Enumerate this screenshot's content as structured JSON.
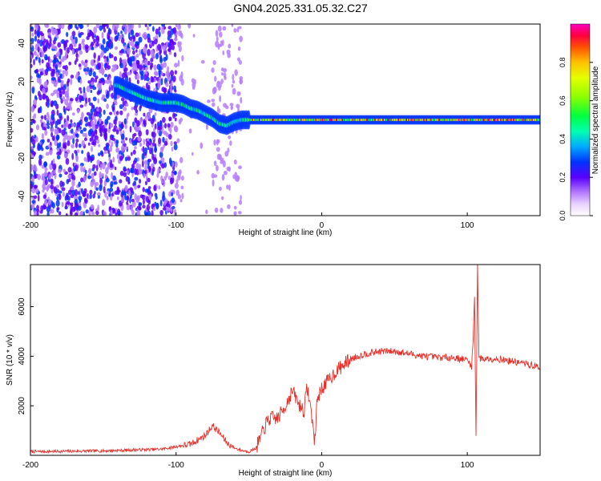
{
  "title": "GN04.2025.331.05.32.C27",
  "chart_data": [
    {
      "type": "heatmap",
      "xlabel": "Height of straight line (km)",
      "ylabel": "Frequency (Hz)",
      "xlim": [
        -200,
        150
      ],
      "ylim": [
        -50,
        50
      ],
      "xticks": [
        -200,
        -100,
        0,
        100
      ],
      "yticks": [
        -40,
        -20,
        0,
        20,
        40
      ],
      "ridge_track": [
        {
          "x": -140,
          "y": 18
        },
        {
          "x": -135,
          "y": 16
        },
        {
          "x": -120,
          "y": 11
        },
        {
          "x": -110,
          "y": 9
        },
        {
          "x": -100,
          "y": 9
        },
        {
          "x": -95,
          "y": 8
        },
        {
          "x": -90,
          "y": 6
        },
        {
          "x": -85,
          "y": 5
        },
        {
          "x": -80,
          "y": 3
        },
        {
          "x": -75,
          "y": 1
        },
        {
          "x": -70,
          "y": -2
        },
        {
          "x": -65,
          "y": -3
        },
        {
          "x": -60,
          "y": -1
        },
        {
          "x": -55,
          "y": 0
        },
        {
          "x": -50,
          "y": 0
        },
        {
          "x": 150,
          "y": 0
        }
      ],
      "colorbar": {
        "label": "Normalized spectral amplitude",
        "range": [
          0,
          1
        ],
        "ticks": [
          "0.0",
          "0.2",
          "0.4",
          "0.6",
          "0.8"
        ],
        "colormap": "rainbow"
      }
    },
    {
      "type": "line",
      "xlabel": "Height of straight line (km)",
      "ylabel": "SNR (10 * v/v)",
      "xlim": [
        -200,
        150
      ],
      "ylim": [
        0,
        7700
      ],
      "xticks": [
        -200,
        -100,
        0,
        100
      ],
      "yticks": [
        2000,
        4000,
        6000
      ],
      "color": "#e8302a",
      "series": [
        {
          "x": [
            -200,
            -150,
            -110,
            -90,
            -80,
            -75,
            -70,
            -65,
            -60,
            -55,
            -50,
            -45,
            -40,
            -38,
            -35,
            -30,
            -25,
            -20,
            -15,
            -12,
            -10,
            -6,
            -5,
            -3,
            0,
            10,
            20,
            30,
            40,
            50,
            60,
            70,
            80,
            90,
            95,
            100,
            103,
            104,
            105,
            106,
            107,
            108,
            109,
            110,
            120,
            130,
            140,
            150
          ],
          "y": [
            150,
            180,
            250,
            450,
            800,
            1200,
            900,
            500,
            300,
            200,
            150,
            300,
            1000,
            1300,
            1500,
            1500,
            2000,
            2600,
            2000,
            1800,
            2800,
            1300,
            400,
            2300,
            2700,
            3400,
            3900,
            4100,
            4200,
            4200,
            4100,
            4000,
            3950,
            3950,
            3900,
            3850,
            3600,
            4600,
            6500,
            700,
            7800,
            4000,
            3900,
            3900,
            3900,
            3800,
            3700,
            3550
          ]
        }
      ]
    }
  ]
}
